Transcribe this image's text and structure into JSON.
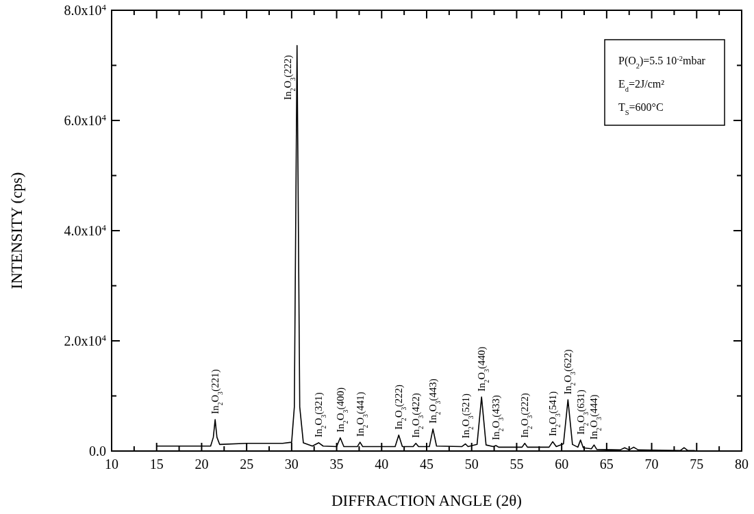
{
  "chart_data": {
    "type": "line",
    "xlabel": "DIFFRACTION ANGLE (2θ)",
    "ylabel": "INTENSITY (cps)",
    "xlim": [
      10,
      80
    ],
    "ylim": [
      0,
      80000
    ],
    "xticks": [
      10,
      {
        "value": 12.5,
        "label": null
      },
      15,
      {
        "value": 17.5,
        "label": null
      },
      20,
      {
        "value": 22.5,
        "label": null
      },
      25,
      {
        "value": 27.5,
        "label": null
      },
      30,
      {
        "value": 32.5,
        "label": null
      },
      35,
      {
        "value": 37.5,
        "label": null
      },
      40,
      {
        "value": 42.5,
        "label": null
      },
      45,
      {
        "value": 47.5,
        "label": null
      },
      50,
      {
        "value": 52.5,
        "label": null
      },
      55,
      {
        "value": 57.5,
        "label": null
      },
      60,
      {
        "value": 62.5,
        "label": null
      },
      65,
      {
        "value": 67.5,
        "label": null
      },
      70,
      {
        "value": 72.5,
        "label": null
      },
      75,
      {
        "value": 77.5,
        "label": null
      },
      80
    ],
    "yticks": [
      {
        "value": 0,
        "label": "0.0"
      },
      {
        "value": 10000,
        "label": null
      },
      {
        "value": 20000,
        "label": "2.0x10$^{4}$"
      },
      {
        "value": 30000,
        "label": null
      },
      {
        "value": 40000,
        "label": "4.0x10$^{4}$"
      },
      {
        "value": 50000,
        "label": null
      },
      {
        "value": 60000,
        "label": "6.0x10$^{4}$"
      },
      {
        "value": 70000,
        "label": null
      },
      {
        "value": 80000,
        "label": "8.0x10$^{4}$"
      }
    ],
    "grid": false,
    "marker": "none",
    "line_style": "solid",
    "series": [
      {
        "color": "#000000",
        "x": [
          15,
          18,
          21.0,
          21.3,
          21.5,
          21.7,
          22.0,
          25,
          29,
          30.0,
          30.3,
          30.6,
          30.9,
          31.3,
          32.3,
          33.0,
          33.5,
          35.0,
          35.4,
          35.8,
          37.3,
          37.6,
          37.9,
          41.5,
          41.9,
          42.3,
          43.5,
          43.8,
          44.1,
          45.3,
          45.7,
          46.1,
          48.9,
          49.3,
          49.6,
          50.6,
          51.1,
          51.6,
          52.4,
          52.7,
          53.0,
          55.6,
          55.9,
          56.2,
          58.6,
          59.0,
          59.4,
          60.2,
          60.7,
          61.2,
          61.8,
          62.1,
          62.4,
          63.3,
          63.6,
          63.9,
          66.5,
          67.0,
          67.5,
          68.0,
          68.5,
          73.2,
          73.6,
          74.0,
          74.8
        ],
        "values": [
          900,
          900,
          900,
          2500,
          5700,
          2500,
          1200,
          1400,
          1400,
          1600,
          8000,
          73600,
          8000,
          1500,
          900,
          1500,
          900,
          800,
          2400,
          800,
          800,
          1600,
          800,
          800,
          2900,
          800,
          800,
          1400,
          800,
          800,
          4000,
          900,
          800,
          1300,
          800,
          1200,
          9800,
          1100,
          800,
          1000,
          700,
          700,
          1400,
          700,
          700,
          1700,
          800,
          1300,
          9300,
          1200,
          700,
          2000,
          600,
          400,
          1100,
          300,
          200,
          600,
          200,
          700,
          200,
          100,
          600,
          100,
          100
        ]
      }
    ],
    "annotations": [
      {
        "text": "In$_{2}$O$_{3}$(221)",
        "x": 21.5,
        "y": 5700
      },
      {
        "text": "In$_{2}$O$_{3}$(222)",
        "x": 30.6,
        "y": 73600
      },
      {
        "text": "In$_{2}$O$_{3}$(321)",
        "x": 33.0,
        "y": 1500
      },
      {
        "text": "In$_{2}$O$_{3}$(400)",
        "x": 35.4,
        "y": 2400
      },
      {
        "text": "In$_{2}$O$_{3}$(441)",
        "x": 37.6,
        "y": 1600
      },
      {
        "text": "In$_{2}$O$_{3}$(222)",
        "x": 41.9,
        "y": 2900
      },
      {
        "text": "In$_{2}$O$_{3}$(422)",
        "x": 43.8,
        "y": 1400
      },
      {
        "text": "In$_{2}$O$_{3}$(443)",
        "x": 45.7,
        "y": 4000
      },
      {
        "text": "In$_{2}$O$_{3}$(521)",
        "x": 49.3,
        "y": 1300
      },
      {
        "text": "In$_{2}$O$_{3}$(440)",
        "x": 51.1,
        "y": 9800
      },
      {
        "text": "In$_{2}$O$_{3}$(433)",
        "x": 52.7,
        "y": 1000
      },
      {
        "text": "In$_{2}$O$_{3}$(222)",
        "x": 55.9,
        "y": 1400
      },
      {
        "text": "In$_{2}$O$_{3}$(541)",
        "x": 59.0,
        "y": 1700
      },
      {
        "text": "In$_{2}$O$_{3}$(622)",
        "x": 60.7,
        "y": 9300
      },
      {
        "text": "In$_{2}$O$_{3}$(631)",
        "x": 62.1,
        "y": 2000
      },
      {
        "text": "In$_{2}$O$_{3}$(444)",
        "x": 63.6,
        "y": 1100
      },
      "P(O$_{2}$)=5.5 10$^{-2}$mbar",
      "E$_{d}$=2J/cm²",
      "T$_{S}$=600°C"
    ]
  }
}
